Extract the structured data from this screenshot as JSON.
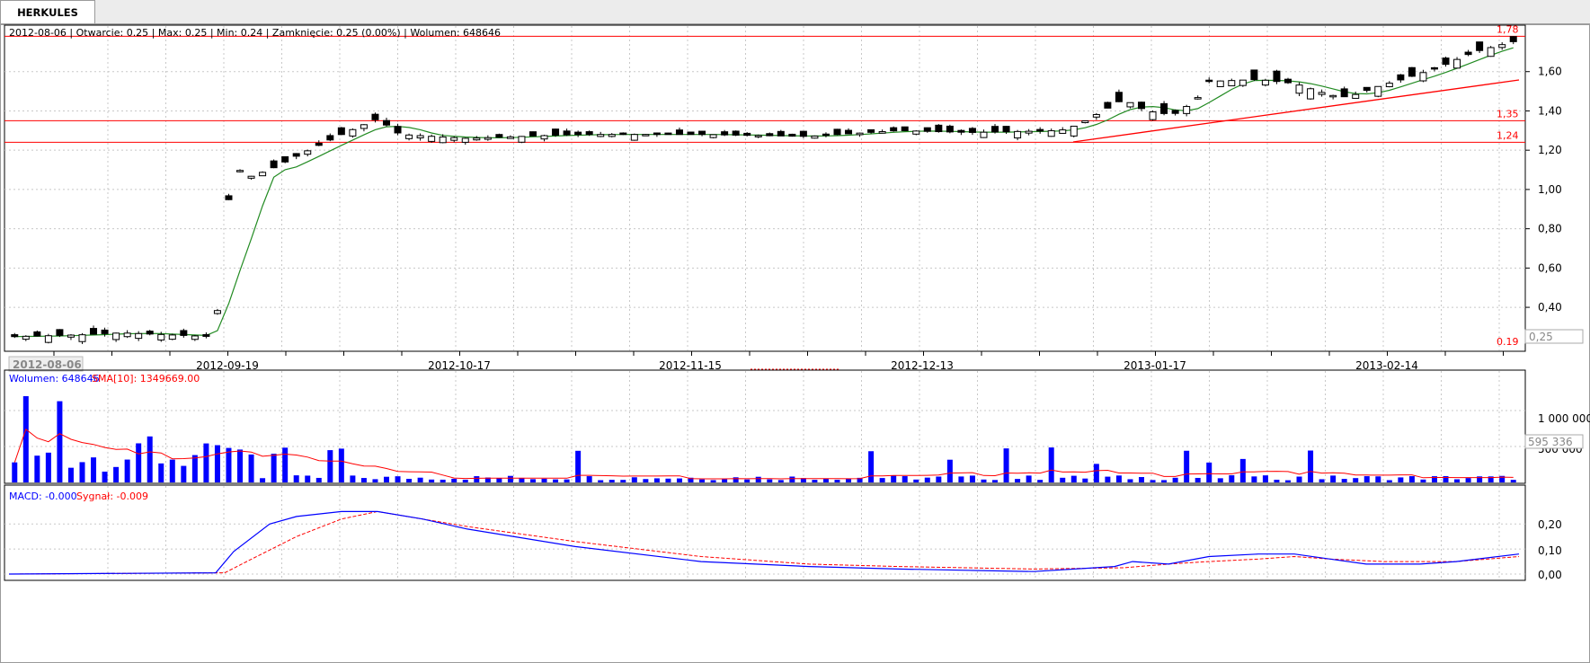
{
  "tab": {
    "label": "HERKULES"
  },
  "price_panel": {
    "info_line": "2012-08-06 | Otwarcie: 0.25 | Max: 0.25 | Min: 0.24 | Zamknięcie: 0.25 (0.00%)  | Wolumen: 648646",
    "y_ticks": [
      "1,60",
      "1,40",
      "1,20",
      "1,00",
      "0,80",
      "0,60",
      "0,40"
    ],
    "levels": [
      "1,78",
      "1,35",
      "1,24",
      "0.19"
    ],
    "current_label": "0,25",
    "date_cursor_label": "2012-08-06"
  },
  "x_axis": {
    "labels": [
      "2012-09-19",
      "2012-10-17",
      "2012-11-15",
      "2012-12-13",
      "2013-01-17",
      "2013-02-14"
    ]
  },
  "volume_panel": {
    "legend_volume": "Wolumen: 648646",
    "legend_sma": "SMA[10]: 1349669.00",
    "y_ticks": [
      "1 000 000",
      "500 000"
    ],
    "current_label": "595 336"
  },
  "macd_panel": {
    "legend_macd": "MACD: -0.000",
    "legend_signal": "Sygnał: -0.009",
    "y_ticks": [
      "0,20",
      "0,10",
      "0,00"
    ]
  },
  "colors": {
    "up": "#ffffff",
    "down": "#000000",
    "sma": "#228b22",
    "trend": "#ff0000",
    "volume": "#0000ff",
    "macd": "#0000ff",
    "signal": "#ff0000"
  },
  "chart_data": [
    {
      "type": "candlestick",
      "title": "HERKULES",
      "x": [
        "2012-08-06",
        "2012-09-19",
        "2012-10-17",
        "2012-11-15",
        "2012-12-13",
        "2013-01-17",
        "2013-02-14"
      ],
      "close_anchor_values": [
        0.25,
        1.17,
        1.27,
        1.28,
        1.3,
        1.38,
        1.58
      ],
      "last_close": 1.77,
      "horizontal_levels": [
        1.78,
        1.35,
        1.24,
        0.19
      ],
      "ylim": [
        0.19,
        1.8
      ],
      "overlay": "moving average"
    },
    {
      "type": "bar",
      "series": [
        {
          "name": "Wolumen"
        },
        {
          "name": "SMA[10]"
        }
      ],
      "last_volume": 648646,
      "sma10": 1349669.0,
      "ylim": [
        0,
        1500000
      ]
    },
    {
      "type": "line",
      "series": [
        {
          "name": "MACD"
        },
        {
          "name": "Sygnał"
        }
      ],
      "macd": -0.0,
      "signal": -0.009,
      "ylim": [
        0,
        0.28
      ]
    }
  ]
}
